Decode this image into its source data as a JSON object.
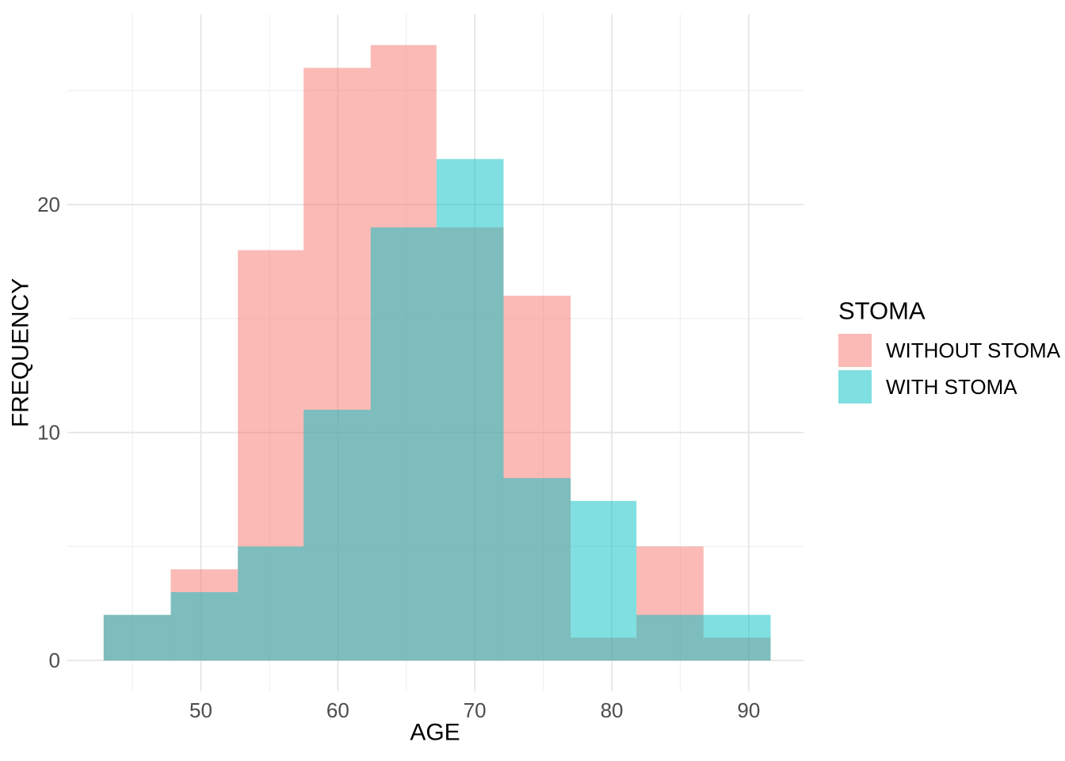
{
  "chart_data": {
    "type": "histogram",
    "title": "",
    "xlabel": "AGE",
    "ylabel": "FREQUENCY",
    "legend_title": "STOMA",
    "legend_position": "right",
    "grid": true,
    "bin_edges": [
      42.9,
      47.8,
      52.7,
      57.5,
      62.4,
      67.2,
      72.1,
      77.0,
      81.8,
      86.7,
      91.6
    ],
    "series": [
      {
        "name": "WITHOUT STOMA",
        "color": "#F8766D",
        "opacity": 0.5,
        "counts": [
          2,
          4,
          18,
          26,
          27,
          19,
          16,
          1,
          5,
          1
        ]
      },
      {
        "name": "WITH STOMA",
        "color": "#00BFC4",
        "opacity": 0.5,
        "counts": [
          2,
          3,
          5,
          11,
          19,
          22,
          8,
          7,
          2,
          2
        ]
      }
    ],
    "overlap_color_rendered": "#7EBDBD",
    "pure_fill_rendered": {
      "without_stoma": "#FCBBB6",
      "with_stoma": "#80DFE2"
    },
    "x_major_ticks": [
      50,
      60,
      70,
      80,
      90
    ],
    "x_minor_gridlines": [
      45,
      55,
      65,
      75,
      85
    ],
    "y_major_ticks": [
      0,
      10,
      20
    ],
    "y_minor_gridlines": [
      5,
      15,
      25
    ],
    "xlim": [
      40.25,
      94.0
    ],
    "ylim": [
      -1.35,
      28.35
    ],
    "colors": {
      "grid_major": "#E4E4E4",
      "grid_minor": "#EFEFEF",
      "tick_label": "#4D4D4D",
      "axis_title": "#000000",
      "legend_text": "#000000",
      "background": "#FFFFFF"
    }
  }
}
